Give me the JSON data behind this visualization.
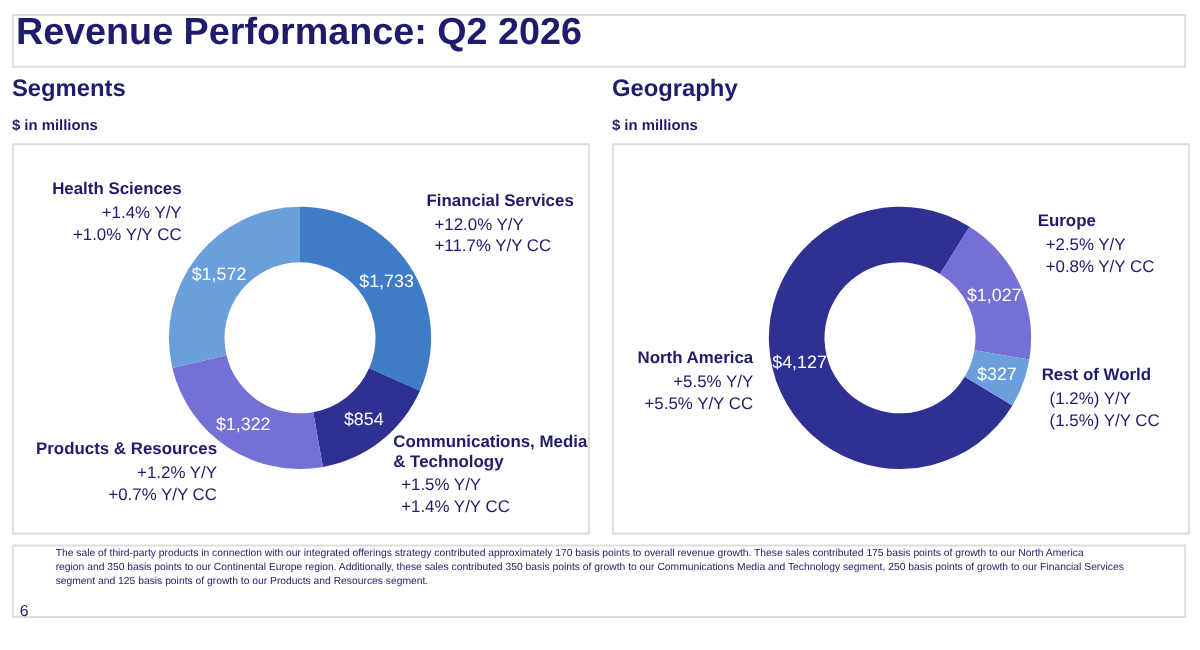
{
  "chart_data": [
    {
      "type": "other",
      "title": "Revenue Performance: Q2 2026",
      "annotations": [
        "The sale of third-party products in connection with our integrated offerings strategy contributed approximately 170 basis points to overall revenue growth. These sales contributed 175 basis points of growth to our North America region and 350 basis points to our Continental Europe region. Additionally, these sales contributed 350 basis points of growth to our Communications Media and Technology segment, 250 basis points of growth to our Financial Services segment and 125 basis points of growth to our Products and Resources segment.",
        "6"
      ]
    },
    {
      "type": "donut",
      "title": "Segments",
      "subtitle": "$ in millions",
      "categories": [
        "Financial Services",
        "Communications, Media & Technology",
        "Products & Resources",
        "Health Sciences"
      ],
      "values": [
        1733,
        854,
        1322,
        1572
      ],
      "value_labels": [
        "$1,733",
        "$854",
        "$1,322",
        "$1,572"
      ],
      "colors": [
        "#3f7cc8",
        "#2e3191",
        "#7470d6",
        "#6a9fdc"
      ],
      "annotations": [
        "+12.0% Y/Y",
        "+11.7% Y/Y CC",
        "+1.5% Y/Y",
        "+1.4% Y/Y CC",
        "+1.2% Y/Y",
        "+0.7% Y/Y CC",
        "+1.4% Y/Y",
        "+1.0% Y/Y CC"
      ]
    },
    {
      "type": "donut",
      "title": "Geography",
      "subtitle": "$ in millions",
      "categories": [
        "North America",
        "Europe",
        "Rest of World"
      ],
      "values": [
        4127,
        1027,
        327
      ],
      "value_labels": [
        "$4,127",
        "$1,027",
        "$327"
      ],
      "colors": [
        "#2e3191",
        "#7470d6",
        "#6a9fdc"
      ],
      "annotations": [
        "+5.5% Y/Y",
        "+5.5% Y/Y CC",
        "+2.5% Y/Y",
        "+0.8% Y/Y CC",
        "(1.2%) Y/Y",
        "(1.5%) Y/Y CC"
      ]
    }
  ]
}
